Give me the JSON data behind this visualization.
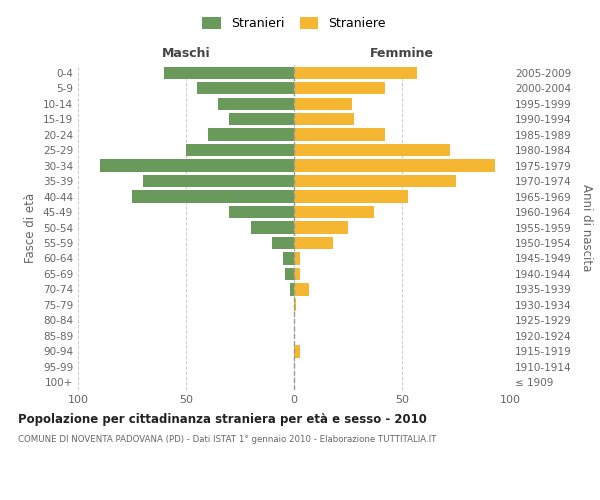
{
  "age_groups": [
    "100+",
    "95-99",
    "90-94",
    "85-89",
    "80-84",
    "75-79",
    "70-74",
    "65-69",
    "60-64",
    "55-59",
    "50-54",
    "45-49",
    "40-44",
    "35-39",
    "30-34",
    "25-29",
    "20-24",
    "15-19",
    "10-14",
    "5-9",
    "0-4"
  ],
  "birth_years": [
    "≤ 1909",
    "1910-1914",
    "1915-1919",
    "1920-1924",
    "1925-1929",
    "1930-1934",
    "1935-1939",
    "1940-1944",
    "1945-1949",
    "1950-1954",
    "1955-1959",
    "1960-1964",
    "1965-1969",
    "1970-1974",
    "1975-1979",
    "1980-1984",
    "1985-1989",
    "1990-1994",
    "1995-1999",
    "2000-2004",
    "2005-2009"
  ],
  "males": [
    0,
    0,
    0,
    0,
    0,
    0,
    2,
    4,
    5,
    10,
    20,
    30,
    75,
    70,
    90,
    50,
    40,
    30,
    35,
    45,
    60
  ],
  "females": [
    0,
    0,
    3,
    0,
    0,
    1,
    7,
    3,
    3,
    18,
    25,
    37,
    53,
    75,
    93,
    72,
    42,
    28,
    27,
    42,
    57
  ],
  "color_males": "#6a9a5b",
  "color_females": "#f5b731",
  "xlim": [
    -100,
    100
  ],
  "xticks": [
    -100,
    -50,
    0,
    50,
    100
  ],
  "xticklabels": [
    "100",
    "50",
    "0",
    "50",
    "100"
  ],
  "title": "Popolazione per cittadinanza straniera per età e sesso - 2010",
  "subtitle": "COMUNE DI NOVENTA PADOVANA (PD) - Dati ISTAT 1° gennaio 2010 - Elaborazione TUTTITALIA.IT",
  "ylabel_left": "Fasce di età",
  "ylabel_right": "Anni di nascita",
  "label_males": "Stranieri",
  "label_females": "Straniere",
  "header_left": "Maschi",
  "header_right": "Femmine",
  "background_color": "#ffffff",
  "grid_color": "#cccccc",
  "bar_height": 0.8
}
